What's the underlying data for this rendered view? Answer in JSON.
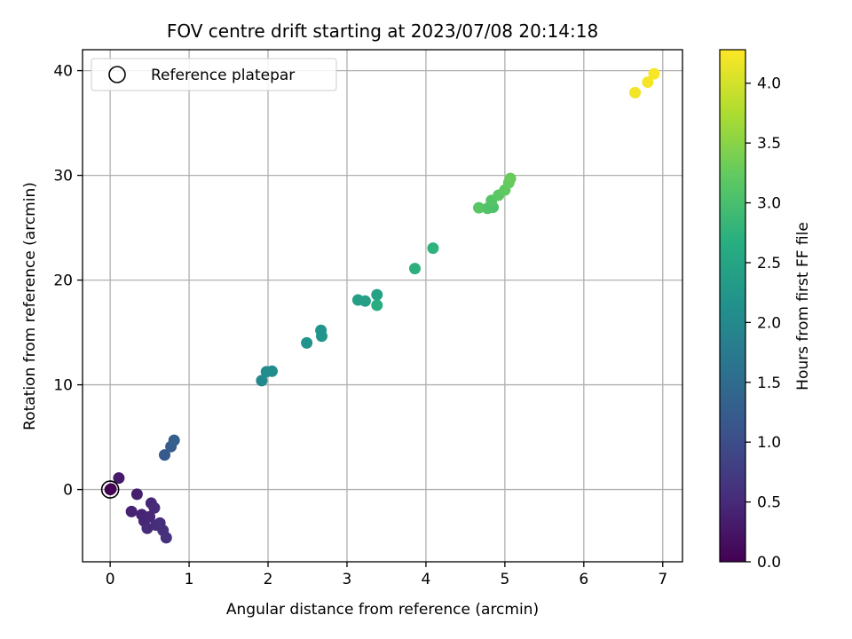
{
  "chart_data": {
    "type": "scatter",
    "title": "FOV centre drift starting at 2023/07/08 20:14:18",
    "xlabel": "Angular distance from reference (arcmin)",
    "ylabel": "Rotation from reference (arcmin)",
    "xlim": [
      -0.35,
      7.25
    ],
    "ylim": [
      -6.9,
      42.0
    ],
    "xticks": [
      "0",
      "1",
      "2",
      "3",
      "4",
      "5",
      "6",
      "7"
    ],
    "yticks": [
      "0",
      "10",
      "20",
      "30",
      "40"
    ],
    "grid": true,
    "legend": {
      "placement": "upper-left",
      "entries": [
        "Reference platepar"
      ]
    },
    "colorbar": {
      "label": "Hours from first FF file",
      "range": [
        0.0,
        4.28
      ],
      "ticks": [
        "0.0",
        "0.5",
        "1.0",
        "1.5",
        "2.0",
        "2.5",
        "3.0",
        "3.5",
        "4.0"
      ],
      "colormap": "viridis"
    },
    "reference_point": {
      "x": 0.0,
      "y": 0.0
    },
    "points": [
      {
        "x": 0.0,
        "y": 0.0,
        "h": 0.0
      },
      {
        "x": 0.01,
        "y": 0.05,
        "h": 0.02
      },
      {
        "x": 0.11,
        "y": 1.1,
        "h": 0.3
      },
      {
        "x": 0.34,
        "y": -0.45,
        "h": 0.35
      },
      {
        "x": 0.27,
        "y": -2.1,
        "h": 0.4
      },
      {
        "x": 0.4,
        "y": -2.4,
        "h": 0.42
      },
      {
        "x": 0.43,
        "y": -3.0,
        "h": 0.45
      },
      {
        "x": 0.5,
        "y": -2.6,
        "h": 0.46
      },
      {
        "x": 0.47,
        "y": -3.7,
        "h": 0.5
      },
      {
        "x": 0.52,
        "y": -1.3,
        "h": 0.48
      },
      {
        "x": 0.56,
        "y": -1.75,
        "h": 0.5
      },
      {
        "x": 0.58,
        "y": -3.4,
        "h": 0.52
      },
      {
        "x": 0.63,
        "y": -3.2,
        "h": 0.55
      },
      {
        "x": 0.67,
        "y": -3.9,
        "h": 0.58
      },
      {
        "x": 0.71,
        "y": -4.6,
        "h": 0.6
      },
      {
        "x": 0.69,
        "y": 3.3,
        "h": 1.2
      },
      {
        "x": 0.77,
        "y": 4.1,
        "h": 1.25
      },
      {
        "x": 0.81,
        "y": 4.7,
        "h": 1.28
      },
      {
        "x": 1.92,
        "y": 10.4,
        "h": 2.0
      },
      {
        "x": 1.98,
        "y": 11.25,
        "h": 2.05
      },
      {
        "x": 2.05,
        "y": 11.3,
        "h": 2.07
      },
      {
        "x": 2.49,
        "y": 14.0,
        "h": 2.15
      },
      {
        "x": 2.67,
        "y": 15.2,
        "h": 2.2
      },
      {
        "x": 2.68,
        "y": 14.65,
        "h": 2.22
      },
      {
        "x": 3.14,
        "y": 18.1,
        "h": 2.4
      },
      {
        "x": 3.23,
        "y": 18.0,
        "h": 2.42
      },
      {
        "x": 3.38,
        "y": 18.6,
        "h": 2.45
      },
      {
        "x": 3.38,
        "y": 17.6,
        "h": 2.65
      },
      {
        "x": 3.86,
        "y": 21.1,
        "h": 2.7
      },
      {
        "x": 4.09,
        "y": 23.05,
        "h": 2.75
      },
      {
        "x": 4.67,
        "y": 26.9,
        "h": 3.15
      },
      {
        "x": 4.78,
        "y": 26.85,
        "h": 3.1
      },
      {
        "x": 4.85,
        "y": 26.95,
        "h": 3.05
      },
      {
        "x": 4.83,
        "y": 27.6,
        "h": 3.12
      },
      {
        "x": 4.92,
        "y": 28.1,
        "h": 3.18
      },
      {
        "x": 5.0,
        "y": 28.6,
        "h": 3.22
      },
      {
        "x": 5.05,
        "y": 29.3,
        "h": 3.25
      },
      {
        "x": 5.07,
        "y": 29.7,
        "h": 3.28
      },
      {
        "x": 6.65,
        "y": 37.9,
        "h": 4.2
      },
      {
        "x": 6.81,
        "y": 38.9,
        "h": 4.22
      },
      {
        "x": 6.89,
        "y": 39.7,
        "h": 4.25
      }
    ]
  }
}
